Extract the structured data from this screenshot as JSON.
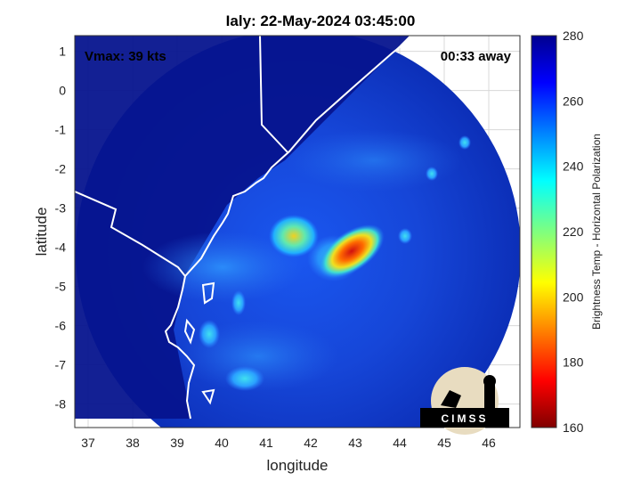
{
  "title": "Ialy: 22-May-2024 03:45:00",
  "annotations": {
    "vmax": "Vmax: 39 kts",
    "time_away": "00:33 away"
  },
  "logo": {
    "text": "CIMSS"
  },
  "map": {
    "xlabel": "longitude",
    "ylabel": "latitude",
    "xlim": [
      36.7,
      46.7
    ],
    "ylim": [
      -8.6,
      1.4
    ],
    "xticks": [
      "37",
      "38",
      "39",
      "40",
      "41",
      "42",
      "43",
      "44",
      "45",
      "46"
    ],
    "yticks": [
      "1",
      "0",
      "-1",
      "-2",
      "-3",
      "-4",
      "-5",
      "-6",
      "-7",
      "-8"
    ],
    "grid": true
  },
  "colorbar": {
    "label": "Brightness Temp - Horizontal Polarization",
    "range": [
      160,
      280
    ],
    "ticks": [
      "280",
      "260",
      "240",
      "220",
      "200",
      "180",
      "160"
    ],
    "colormap": "jet"
  },
  "colors": {
    "background_field": "#0a1fa0",
    "storm_core": "#e01010",
    "coastline": "#ffffff"
  }
}
